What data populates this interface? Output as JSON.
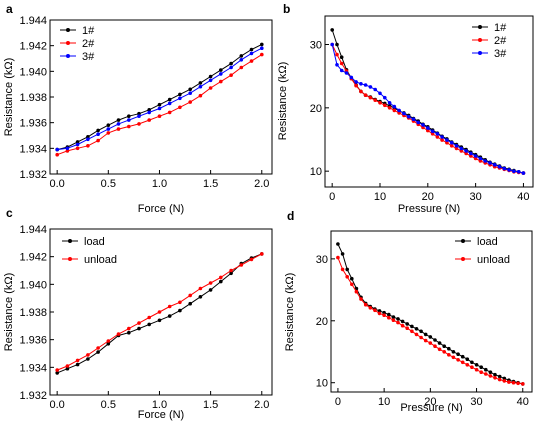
{
  "chart_data": [
    {
      "panel": "a",
      "type": "line",
      "xlabel": "Force (N)",
      "ylabel": "Resistance (kΩ)",
      "xlim": [
        -0.07,
        2.1
      ],
      "ylim": [
        1.932,
        1.944
      ],
      "xticks": [
        "0.0",
        "0.5",
        "1.0",
        "1.5",
        "2.0"
      ],
      "yticks": [
        "1.932",
        "1.934",
        "1.936",
        "1.938",
        "1.940",
        "1.942",
        "1.944"
      ],
      "legend_position": "top-left",
      "series": [
        {
          "name": "1#",
          "color": "#000000",
          "x": [
            0.0,
            0.1,
            0.2,
            0.3,
            0.4,
            0.5,
            0.6,
            0.7,
            0.8,
            0.9,
            1.0,
            1.1,
            1.2,
            1.3,
            1.4,
            1.5,
            1.6,
            1.7,
            1.8,
            1.9,
            2.0
          ],
          "y": [
            1.9339,
            1.9341,
            1.9345,
            1.9349,
            1.9354,
            1.9358,
            1.9362,
            1.9365,
            1.9367,
            1.937,
            1.9374,
            1.9378,
            1.9382,
            1.9386,
            1.9391,
            1.9396,
            1.9401,
            1.9406,
            1.9412,
            1.9417,
            1.9421
          ]
        },
        {
          "name": "2#",
          "color": "#ff0000",
          "x": [
            0.0,
            0.1,
            0.2,
            0.3,
            0.4,
            0.5,
            0.6,
            0.7,
            0.8,
            0.9,
            1.0,
            1.1,
            1.2,
            1.3,
            1.4,
            1.5,
            1.6,
            1.7,
            1.8,
            1.9,
            2.0
          ],
          "y": [
            1.9335,
            1.9338,
            1.934,
            1.9342,
            1.9346,
            1.9352,
            1.9355,
            1.9357,
            1.9359,
            1.9362,
            1.9365,
            1.9368,
            1.9372,
            1.9376,
            1.9381,
            1.9387,
            1.9392,
            1.9397,
            1.9403,
            1.9408,
            1.9413
          ]
        },
        {
          "name": "3#",
          "color": "#0000ff",
          "x": [
            0.0,
            0.1,
            0.2,
            0.3,
            0.4,
            0.5,
            0.6,
            0.7,
            0.8,
            0.9,
            1.0,
            1.1,
            1.2,
            1.3,
            1.4,
            1.5,
            1.6,
            1.7,
            1.8,
            1.9,
            2.0
          ],
          "y": [
            1.9339,
            1.934,
            1.9343,
            1.9347,
            1.9351,
            1.9355,
            1.9359,
            1.9362,
            1.9365,
            1.9368,
            1.9371,
            1.9375,
            1.9379,
            1.9383,
            1.9388,
            1.9393,
            1.9398,
            1.9403,
            1.9409,
            1.9414,
            1.9418
          ]
        }
      ]
    },
    {
      "panel": "b",
      "type": "line",
      "xlabel": "Pressure (N)",
      "ylabel": "Resistance (kΩ)",
      "xlim": [
        -1.5,
        42
      ],
      "ylim": [
        7.5,
        34.5
      ],
      "xticks": [
        "0",
        "10",
        "20",
        "30",
        "40"
      ],
      "yticks": [
        "10",
        "20",
        "30"
      ],
      "legend_position": "top-right",
      "series": [
        {
          "name": "1#",
          "color": "#000000",
          "x": [
            0,
            1,
            2,
            3,
            4,
            5,
            6,
            7,
            8,
            9,
            10,
            11,
            12,
            13,
            14,
            15,
            16,
            17,
            18,
            19,
            20,
            21,
            22,
            23,
            24,
            25,
            26,
            27,
            28,
            29,
            30,
            31,
            32,
            33,
            34,
            35,
            36,
            37,
            38,
            39,
            40
          ],
          "y": [
            32.3,
            30.0,
            28.0,
            26.0,
            24.7,
            23.6,
            22.6,
            22.0,
            21.7,
            21.3,
            21.0,
            20.7,
            20.3,
            20.0,
            19.5,
            19.2,
            18.8,
            18.3,
            17.9,
            17.4,
            17.0,
            16.5,
            16.0,
            15.5,
            15.1,
            14.6,
            14.2,
            13.8,
            13.4,
            13.0,
            12.6,
            12.2,
            11.8,
            11.4,
            11.1,
            10.8,
            10.5,
            10.3,
            10.1,
            9.9,
            9.7
          ]
        },
        {
          "name": "2#",
          "color": "#ff0000",
          "x": [
            0,
            1,
            2,
            3,
            4,
            5,
            6,
            7,
            8,
            9,
            10,
            11,
            12,
            13,
            14,
            15,
            16,
            17,
            18,
            19,
            20,
            21,
            22,
            23,
            24,
            25,
            26,
            27,
            28,
            29,
            30,
            31,
            32,
            33,
            34,
            35,
            36,
            37,
            38,
            39,
            40
          ],
          "y": [
            30.0,
            28.4,
            27.0,
            25.8,
            24.6,
            23.5,
            22.6,
            22.0,
            21.6,
            21.2,
            20.8,
            20.4,
            20.0,
            19.6,
            19.2,
            18.8,
            18.4,
            17.9,
            17.4,
            16.9,
            16.4,
            15.9,
            15.4,
            14.9,
            14.5,
            14.0,
            13.6,
            13.2,
            12.8,
            12.4,
            12.0,
            11.6,
            11.3,
            11.0,
            10.7,
            10.5,
            10.3,
            10.1,
            9.9,
            9.8,
            9.7
          ]
        },
        {
          "name": "3#",
          "color": "#0000ff",
          "x": [
            0,
            1,
            2,
            3,
            4,
            5,
            6,
            7,
            8,
            9,
            10,
            11,
            12,
            13,
            14,
            15,
            16,
            17,
            18,
            19,
            20,
            21,
            22,
            23,
            24,
            25,
            26,
            27,
            28,
            29,
            30,
            31,
            32,
            33,
            34,
            35,
            36,
            37,
            38,
            39,
            40
          ],
          "y": [
            30.0,
            26.8,
            25.9,
            25.5,
            24.8,
            24.1,
            23.8,
            23.6,
            23.3,
            22.9,
            22.3,
            21.6,
            20.8,
            20.2,
            19.6,
            19.1,
            18.6,
            18.2,
            17.7,
            17.3,
            16.8,
            16.3,
            15.9,
            15.4,
            14.9,
            14.5,
            14.0,
            13.6,
            13.2,
            12.8,
            12.4,
            12.0,
            11.6,
            11.3,
            11.0,
            10.7,
            10.4,
            10.2,
            10.0,
            9.9,
            9.7
          ]
        }
      ]
    },
    {
      "panel": "c",
      "type": "line",
      "xlabel": "Force (N)",
      "ylabel": "Resistance (kΩ)",
      "xlim": [
        -0.07,
        2.1
      ],
      "ylim": [
        1.932,
        1.944
      ],
      "xticks": [
        "0.0",
        "0.5",
        "1.0",
        "1.5",
        "2.0"
      ],
      "yticks": [
        "1.932",
        "1.934",
        "1.936",
        "1.938",
        "1.940",
        "1.942",
        "1.944"
      ],
      "legend_position": "top-left",
      "series": [
        {
          "name": "load",
          "color": "#000000",
          "x": [
            0.0,
            0.1,
            0.2,
            0.3,
            0.4,
            0.5,
            0.6,
            0.7,
            0.8,
            0.9,
            1.0,
            1.1,
            1.2,
            1.3,
            1.4,
            1.5,
            1.6,
            1.7,
            1.8,
            1.9,
            2.0
          ],
          "y": [
            1.9336,
            1.9339,
            1.9342,
            1.9346,
            1.9351,
            1.9357,
            1.9363,
            1.9365,
            1.9368,
            1.9371,
            1.9374,
            1.9377,
            1.9381,
            1.9386,
            1.9391,
            1.9396,
            1.9402,
            1.9408,
            1.9415,
            1.9419,
            1.9422
          ]
        },
        {
          "name": "unload",
          "color": "#ff0000",
          "x": [
            0.0,
            0.1,
            0.2,
            0.3,
            0.4,
            0.5,
            0.6,
            0.7,
            0.8,
            0.9,
            1.0,
            1.1,
            1.2,
            1.3,
            1.4,
            1.5,
            1.6,
            1.7,
            1.8,
            1.9,
            2.0
          ],
          "y": [
            1.9338,
            1.9341,
            1.9345,
            1.9349,
            1.9354,
            1.9359,
            1.9364,
            1.9368,
            1.9372,
            1.9376,
            1.938,
            1.9384,
            1.9387,
            1.9392,
            1.9397,
            1.9401,
            1.9405,
            1.941,
            1.9414,
            1.9418,
            1.9422
          ]
        }
      ]
    },
    {
      "panel": "d",
      "type": "line",
      "xlabel": "Pressure (N)",
      "ylabel": "Resistance (kΩ)",
      "xlim": [
        -1.5,
        42
      ],
      "ylim": [
        8.5,
        34.5
      ],
      "xticks": [
        "0",
        "10",
        "20",
        "30",
        "40"
      ],
      "yticks": [
        "10",
        "20",
        "30"
      ],
      "legend_position": "top-right",
      "series": [
        {
          "name": "load",
          "color": "#000000",
          "x": [
            0,
            1,
            2,
            3,
            4,
            5,
            6,
            7,
            8,
            9,
            10,
            11,
            12,
            13,
            14,
            15,
            16,
            17,
            18,
            19,
            20,
            21,
            22,
            23,
            24,
            25,
            26,
            27,
            28,
            29,
            30,
            31,
            32,
            33,
            34,
            35,
            36,
            37,
            38,
            39,
            40
          ],
          "y": [
            32.4,
            30.8,
            28.3,
            26.8,
            25.2,
            23.8,
            22.8,
            22.3,
            21.9,
            21.6,
            21.3,
            21.0,
            20.6,
            20.3,
            19.9,
            19.5,
            19.1,
            18.7,
            18.3,
            17.8,
            17.4,
            16.9,
            16.4,
            15.9,
            15.5,
            15.0,
            14.6,
            14.2,
            13.8,
            13.3,
            12.9,
            12.5,
            12.1,
            11.7,
            11.3,
            11.0,
            10.7,
            10.4,
            10.2,
            10.0,
            9.8
          ]
        },
        {
          "name": "unload",
          "color": "#ff0000",
          "x": [
            0,
            1,
            2,
            3,
            4,
            5,
            6,
            7,
            8,
            9,
            10,
            11,
            12,
            13,
            14,
            15,
            16,
            17,
            18,
            19,
            20,
            21,
            22,
            23,
            24,
            25,
            26,
            27,
            28,
            29,
            30,
            31,
            32,
            33,
            34,
            35,
            36,
            37,
            38,
            39,
            40
          ],
          "y": [
            30.2,
            28.3,
            27.1,
            25.9,
            24.7,
            23.5,
            22.6,
            22.1,
            21.7,
            21.2,
            20.9,
            20.5,
            20.1,
            19.7,
            19.2,
            18.8,
            18.3,
            17.8,
            17.3,
            16.8,
            16.4,
            15.9,
            15.4,
            15.0,
            14.5,
            14.1,
            13.7,
            13.3,
            12.9,
            12.5,
            12.1,
            11.7,
            11.4,
            11.1,
            10.8,
            10.5,
            10.3,
            10.1,
            10.0,
            9.9,
            9.8
          ]
        }
      ]
    }
  ]
}
